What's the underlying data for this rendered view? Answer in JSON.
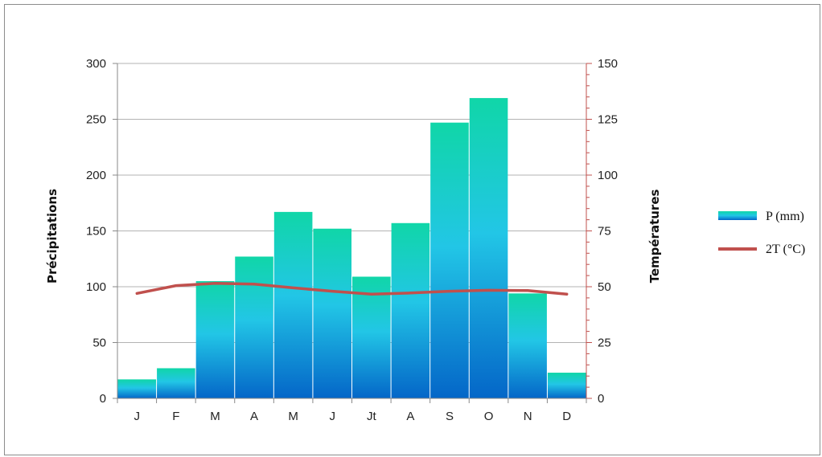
{
  "chart_data": {
    "type": "bar",
    "categories": [
      "J",
      "F",
      "M",
      "A",
      "M",
      "J",
      "Jt",
      "A",
      "S",
      "O",
      "N",
      "D"
    ],
    "series": [
      {
        "name": "P (mm)",
        "type": "bar",
        "axis": "left",
        "values": [
          17,
          27,
          105,
          127,
          167,
          152,
          109,
          157,
          247,
          269,
          94,
          23
        ]
      },
      {
        "name": "2T (°C)",
        "type": "line",
        "axis": "right",
        "values": [
          47,
          50.5,
          51.5,
          51.2,
          49.5,
          48,
          46.7,
          47.2,
          48,
          48.4,
          48.3,
          46.7
        ]
      }
    ],
    "ylabel": "Précipitations",
    "y2label": "Températures",
    "ylim": [
      0,
      300
    ],
    "y2lim": [
      0,
      150
    ],
    "yticks": [
      "0",
      "50",
      "100",
      "150",
      "200",
      "250",
      "300"
    ],
    "y2ticks": [
      "0",
      "25",
      "50",
      "75",
      "100",
      "125",
      "150"
    ],
    "grid": true,
    "legend_position": "right",
    "colors": {
      "bar_top": "#10d6a8",
      "bar_mid": "#22c6e6",
      "bar_bottom": "#0466c8",
      "line": "#c0504d",
      "grid": "#b3b3b3",
      "right_axis": "#c0504d"
    }
  }
}
